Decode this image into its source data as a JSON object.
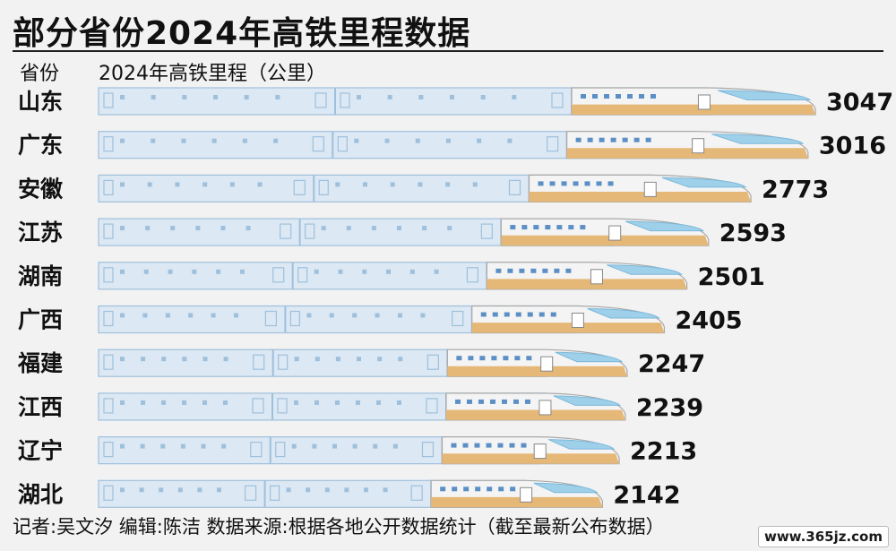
{
  "header": {
    "title": "部分省份2024年高铁里程数据"
  },
  "columns": {
    "province": "省份",
    "metric": "2024年高铁里程（公里）"
  },
  "footer": {
    "credit": "记者:吴文汐  编辑:陈洁  数据来源:根据各地公开数据统计（截至最新公布数据）"
  },
  "watermark": "www.365jz.com",
  "colors": {
    "car_fill": "#dce8f3",
    "car_border": "#9fc0dc",
    "nose_top": "#f4f4f4",
    "nose_bottom": "#e6b877",
    "window": "#5b8fc6",
    "stripe": "#e6b877"
  },
  "chart_data": {
    "type": "bar",
    "orientation": "horizontal",
    "categories": [
      "山东",
      "广东",
      "安徽",
      "江苏",
      "湖南",
      "广西",
      "福建",
      "江西",
      "辽宁",
      "湖北"
    ],
    "values": [
      3047,
      3016,
      2773,
      2593,
      2501,
      2405,
      2247,
      2239,
      2213,
      2142
    ],
    "unit": "公里"
  }
}
